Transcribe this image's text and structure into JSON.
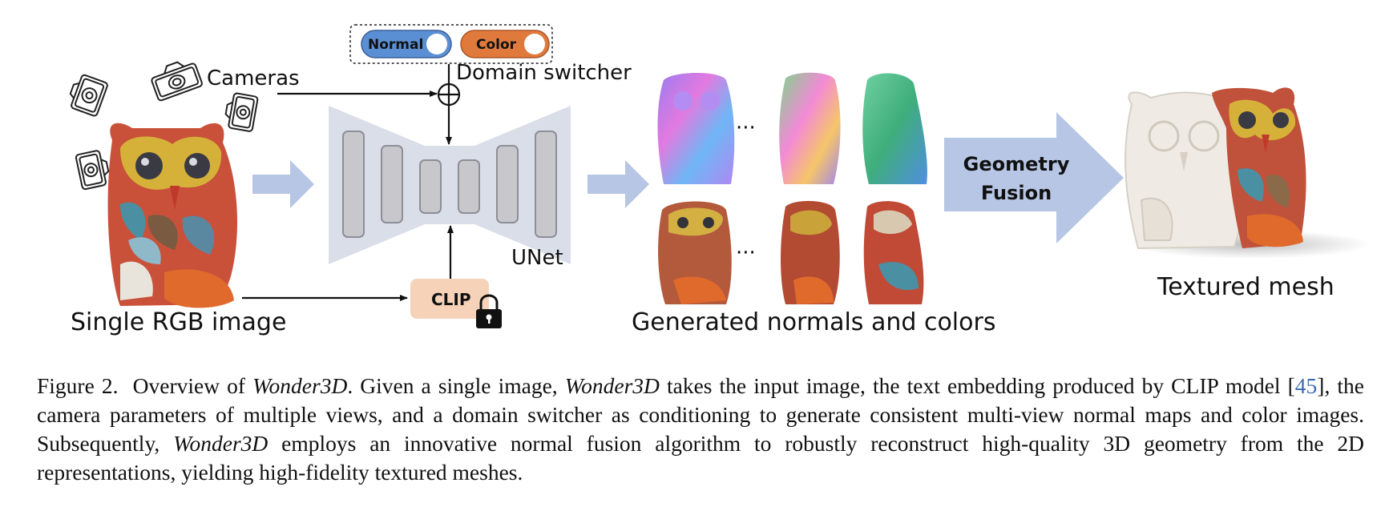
{
  "diagram": {
    "input_label": "Single RGB image",
    "cameras_label": "Cameras",
    "switcher": {
      "normal_label": "Normal",
      "color_label": "Color",
      "title": "Domain switcher"
    },
    "unet_label": "UNet",
    "clip_label": "CLIP",
    "ellipsis": "···",
    "generated_label": "Generated normals and colors",
    "fusion_label_line1": "Geometry",
    "fusion_label_line2": "Fusion",
    "output_label": "Textured mesh",
    "colors": {
      "normal_toggle": "#5b8fd4",
      "color_toggle": "#e07a3c",
      "unet_shape": "#d9dee8",
      "unet_block": "#c8c8cc",
      "flow_arrow": "#b6c6e4",
      "clip_box": "#f6d3b8",
      "citation": "#3a6ab0"
    }
  },
  "caption": {
    "figure_label": "Figure 2.",
    "t1": "Overview of",
    "name": "Wonder3D",
    "t2": ". Given a single image,",
    "t3": "takes the input image, the text embedding produced by CLIP model [",
    "ref": "45",
    "t4": "], the camera parameters of multiple views, and a domain switcher as conditioning to generate consistent multi-view normal maps and color images. Subsequently,",
    "t5": "employs an innovative normal fusion algorithm to robustly reconstruct high-quality 3D geometry from the 2D representations, yielding high-fidelity textured meshes."
  }
}
